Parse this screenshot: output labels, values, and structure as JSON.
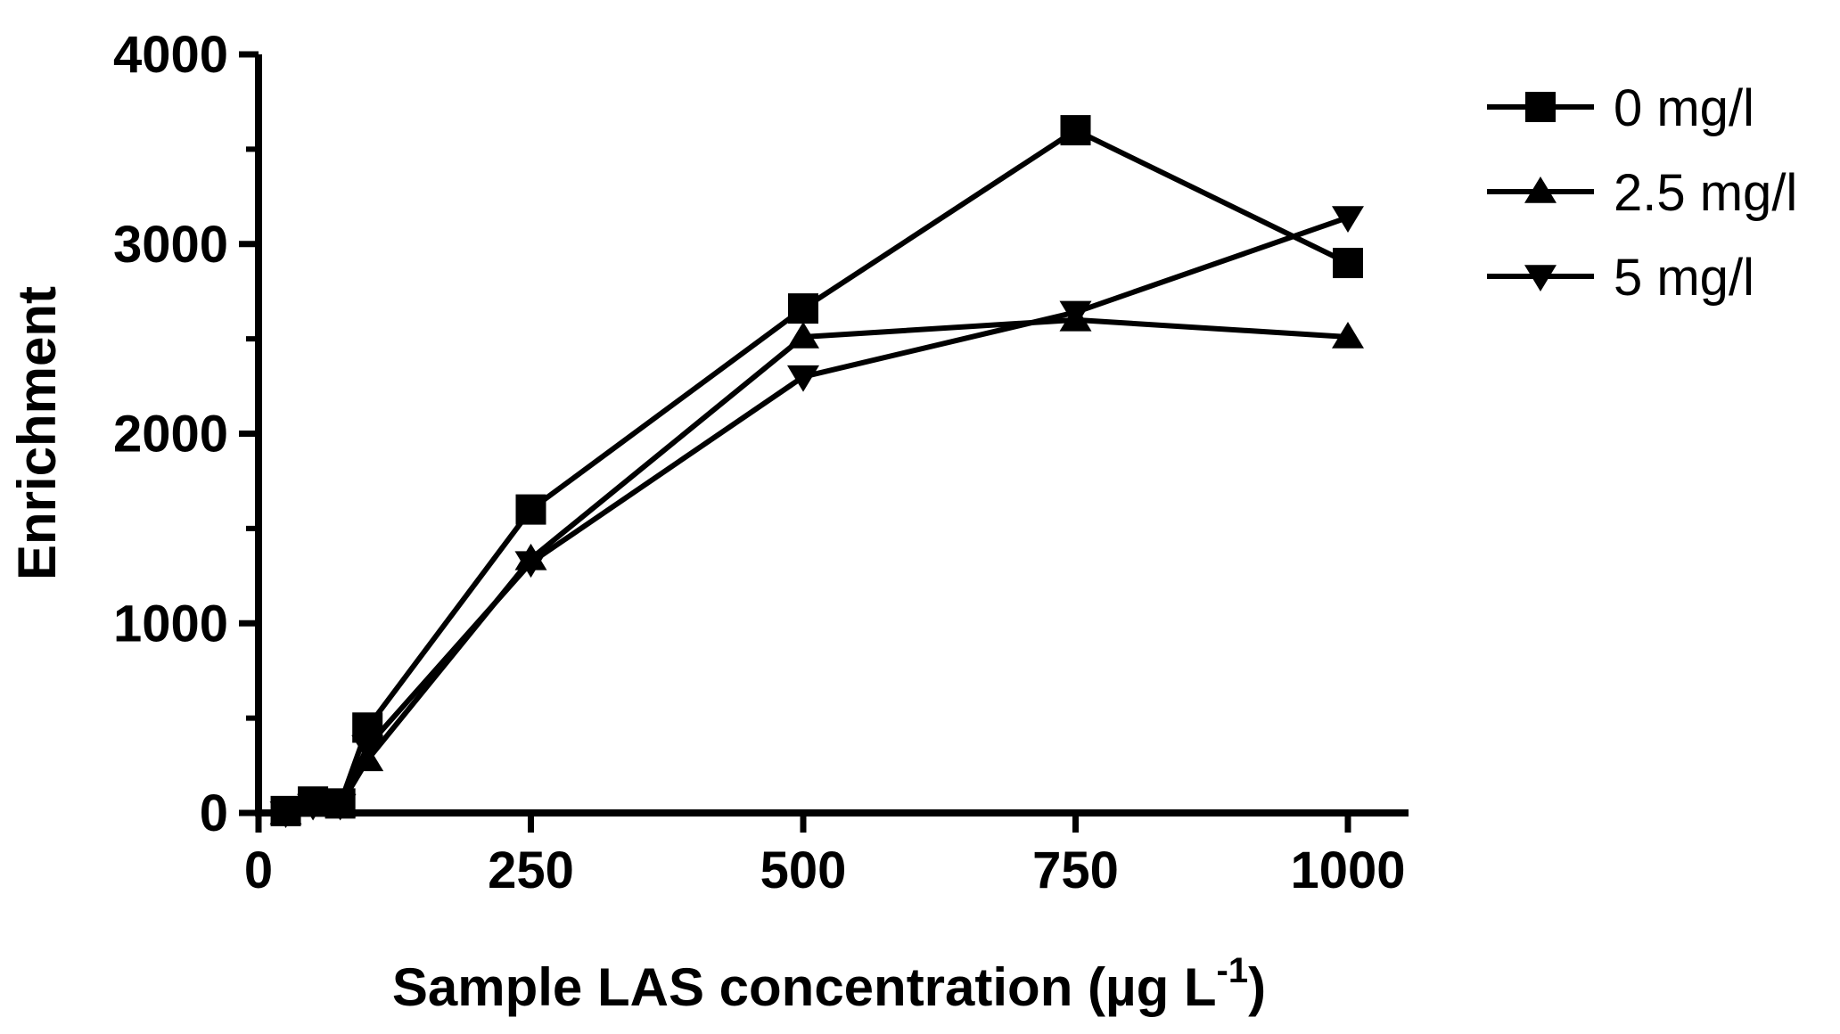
{
  "chart_data": {
    "type": "line",
    "title": "",
    "xlabel": "Sample LAS concentration (µg L",
    "xlabel_superscript": "-1",
    "xlabel_suffix": ")",
    "ylabel": "Enrichment",
    "xlim": [
      0,
      1000
    ],
    "ylim": [
      0,
      4000
    ],
    "x_ticks": [
      0,
      250,
      500,
      750,
      1000
    ],
    "y_ticks": [
      0,
      1000,
      2000,
      3000,
      4000
    ],
    "y_minor_ticks": [
      500,
      1500,
      2500,
      3500
    ],
    "grid": false,
    "legend_position": "top-right, outside plot",
    "series": [
      {
        "name": "0 mg/l",
        "marker": "square",
        "x": [
          25,
          50,
          75,
          100,
          250,
          500,
          750,
          1000
        ],
        "y": [
          10,
          60,
          50,
          450,
          1600,
          2660,
          3600,
          2900
        ]
      },
      {
        "name": "2.5 mg/l",
        "marker": "triangle-up",
        "x": [
          25,
          50,
          75,
          100,
          250,
          500,
          750,
          1000
        ],
        "y": [
          0,
          40,
          40,
          280,
          1340,
          2510,
          2600,
          2510
        ]
      },
      {
        "name": "5 mg/l",
        "marker": "triangle-down",
        "x": [
          25,
          50,
          75,
          100,
          250,
          500,
          750,
          1000
        ],
        "y": [
          0,
          40,
          40,
          350,
          1320,
          2300,
          2640,
          3140
        ]
      }
    ]
  }
}
